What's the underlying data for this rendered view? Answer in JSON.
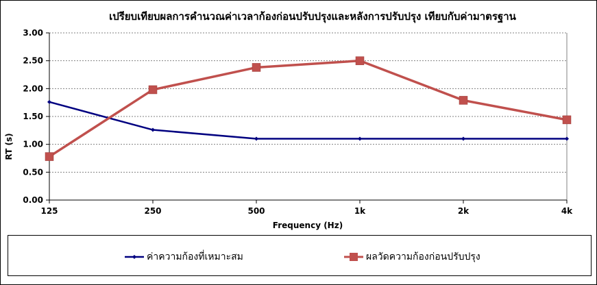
{
  "chart_data": {
    "type": "line",
    "title": "เปรียบเทียบผลการคำนวณค่าเวลาก้องก่อนปรับปรุงและหลังการปรับปรุง เทียบกับค่ามาตรฐาน",
    "xlabel": "Frequency (Hz)",
    "ylabel": "RT (s)",
    "categories": [
      "125",
      "250",
      "500",
      "1k",
      "2k",
      "4k"
    ],
    "ylim": [
      0,
      3
    ],
    "yticks": [
      "0.00",
      "0.50",
      "1.00",
      "1.50",
      "2.00",
      "2.50",
      "3.00"
    ],
    "grid": true,
    "legend_position": "bottom",
    "series": [
      {
        "name": "ค่าความก้องที่เหมาะสม",
        "values": [
          1.76,
          1.26,
          1.1,
          1.1,
          1.1,
          1.1
        ],
        "color": "#000080",
        "marker": "diamond"
      },
      {
        "name": "ผลวัดความก้องก่อนปรับปรุง",
        "values": [
          0.78,
          1.98,
          2.38,
          2.5,
          1.79,
          1.44
        ],
        "color": "#C0504D",
        "marker": "square"
      }
    ]
  }
}
